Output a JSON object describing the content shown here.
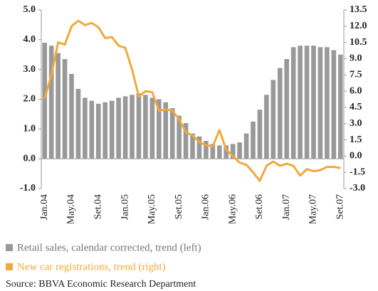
{
  "chart_data": {
    "type": "bar_line",
    "categories": [
      "Jan.04",
      null,
      null,
      null,
      "May.04",
      null,
      null,
      null,
      "Set.04",
      null,
      null,
      null,
      "Jan.05",
      null,
      null,
      null,
      "May.05",
      null,
      null,
      null,
      "Set.05",
      null,
      null,
      null,
      "Jan.06",
      null,
      null,
      null,
      "May.06",
      null,
      null,
      null,
      "Set.06",
      null,
      null,
      null,
      "Jan.07",
      null,
      null,
      null,
      "May.07",
      null,
      null,
      null,
      "Set.07"
    ],
    "series": [
      {
        "name": "Retail sales, calendar corrected, trend (left)",
        "color": "#999999",
        "type": "bar",
        "values": [
          3.9,
          3.8,
          3.55,
          3.35,
          2.85,
          2.35,
          2.05,
          1.95,
          1.85,
          1.9,
          1.95,
          2.05,
          2.1,
          2.15,
          2.2,
          2.15,
          2.05,
          2.0,
          1.9,
          1.7,
          1.45,
          1.2,
          0.85,
          0.75,
          0.6,
          0.5,
          0.45,
          0.45,
          0.5,
          0.55,
          0.85,
          1.25,
          1.65,
          2.15,
          2.65,
          3.05,
          3.35,
          3.75,
          3.8,
          3.8,
          3.8,
          3.75,
          3.75,
          3.65,
          3.5
        ]
      },
      {
        "name": "New car registrations, trend (right)",
        "color": "#f2a93b",
        "type": "line",
        "axis": "y2",
        "values": [
          5.3,
          7.5,
          10.5,
          10.3,
          12.0,
          12.5,
          12.1,
          12.3,
          11.9,
          10.9,
          11.0,
          10.2,
          10.0,
          8.0,
          5.5,
          6.0,
          5.9,
          4.2,
          4.3,
          4.2,
          3.4,
          2.2,
          1.9,
          1.3,
          1.0,
          0.9,
          2.4,
          0.6,
          0.0,
          -0.6,
          -0.8,
          -1.5,
          -2.3,
          -0.9,
          -0.5,
          -0.9,
          -0.7,
          -0.9,
          -1.8,
          -1.2,
          -1.4,
          -1.3,
          -1.0,
          -1.0,
          -1.1
        ]
      }
    ],
    "ylim": [
      -1,
      5
    ],
    "yticks": [
      {
        "value": -1,
        "label": "-1.0"
      },
      {
        "value": 0,
        "label": "0.0"
      },
      {
        "value": 1,
        "label": "1.0"
      },
      {
        "value": 2,
        "label": "2.0"
      },
      {
        "value": 3,
        "label": "3.0"
      },
      {
        "value": 4,
        "label": "4.0"
      },
      {
        "value": 5,
        "label": "5.0"
      }
    ],
    "y2lim": [
      -3,
      13.5
    ],
    "y2ticks": [
      {
        "value": -3,
        "label": "-3.0"
      },
      -1.5,
      {
        "value": 0,
        "label": "0.0"
      },
      1.5,
      {
        "value": 3,
        "label": "3.0"
      },
      4.5,
      {
        "value": 6,
        "label": "6.0"
      },
      7.5,
      {
        "value": 9,
        "label": "9.0"
      },
      10.5,
      {
        "value": 12,
        "label": "12.0"
      },
      13.5
    ],
    "source": "Source: BBVA Economic Research Department"
  }
}
